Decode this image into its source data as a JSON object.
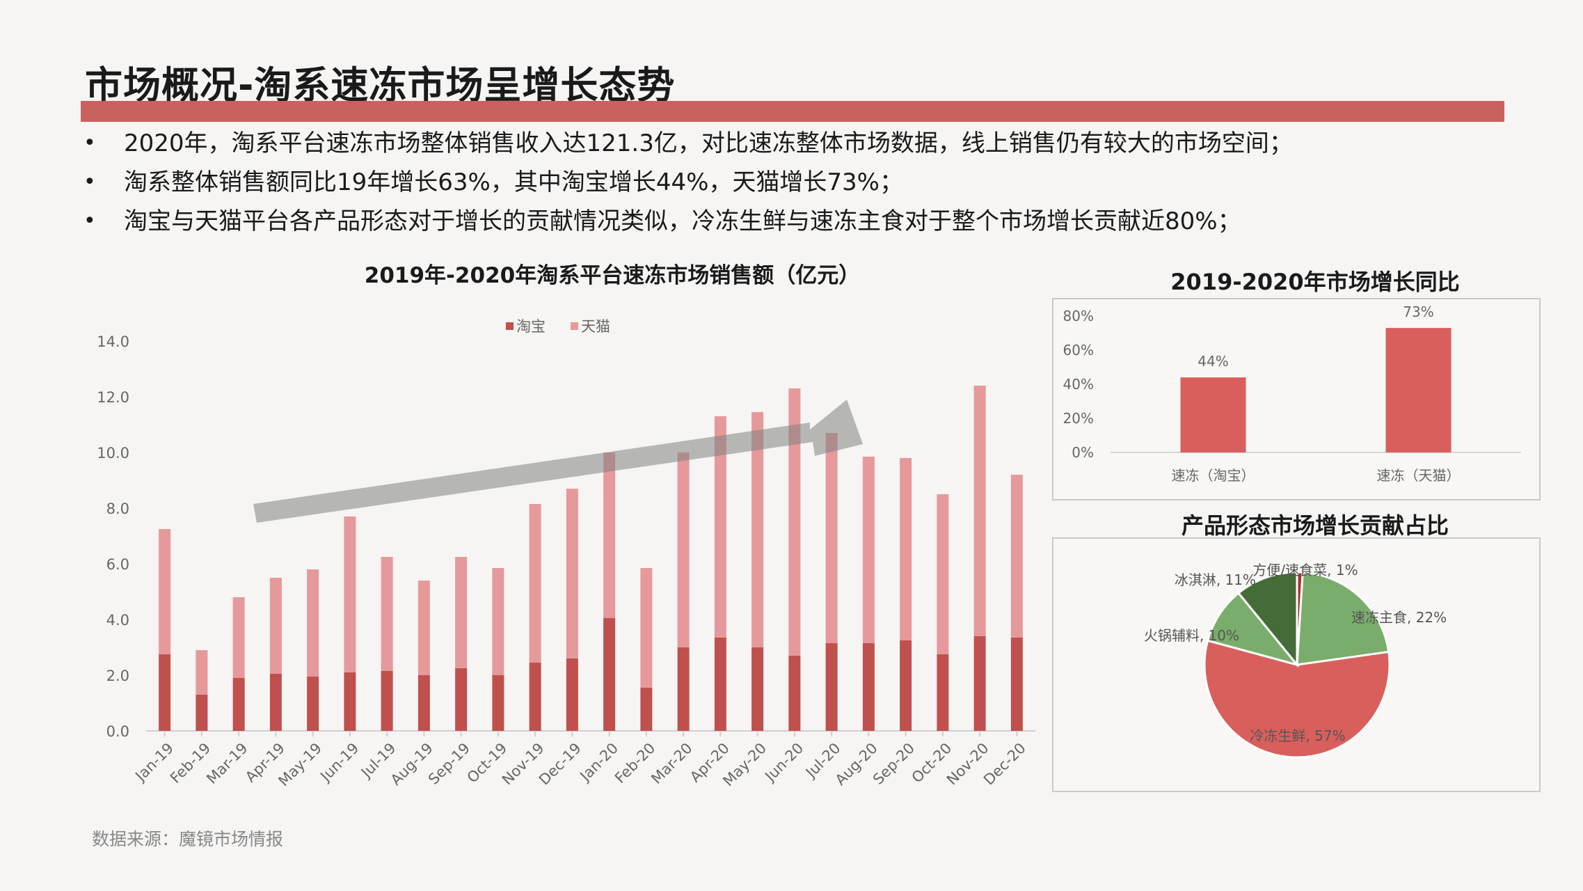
{
  "title": "市场概况-淘系速冻市场呈增长态势",
  "bullets": [
    "2020年，淘系平台速冻市场整体销售收入达121.3亿，对比速冻整体市场数据，线上销售仍有较大的市场空间；",
    "淘系整体销售额同比19年增长63%，其中淘宝增长44%，天猫增长73%；",
    "淘宝与天猫平台各产品形态对于增长的贡献情况类似，冷冻生鲜与速冻主食对于整个市场增长贡献近80%；"
  ],
  "bullet_symbol": "•",
  "source": "数据来源：魔镜市场情报",
  "colors": {
    "accent": "#c9615e",
    "taobao": "#c0504d",
    "tmall": "#e6999a",
    "growth_bar": "#d95f5c",
    "pie_red": "#d95f5c",
    "pie_green": "#7aad6b",
    "pie_dark_green": "#456b39",
    "pie_darkred": "#a83332"
  },
  "chart_data": [
    {
      "type": "bar",
      "stacked": true,
      "title": "2019年-2020年淘系平台速冻市场销售额（亿元）",
      "categories": [
        "Jan-19",
        "Feb-19",
        "Mar-19",
        "Apr-19",
        "May-19",
        "Jun-19",
        "Jul-19",
        "Aug-19",
        "Sep-19",
        "Oct-19",
        "Nov-19",
        "Dec-19",
        "Jan-20",
        "Feb-20",
        "Mar-20",
        "Apr-20",
        "May-20",
        "Jun-20",
        "Jul-20",
        "Aug-20",
        "Sep-20",
        "Oct-20",
        "Nov-20",
        "Dec-20"
      ],
      "series": [
        {
          "name": "淘宝",
          "values": [
            2.75,
            1.3,
            1.9,
            2.05,
            1.95,
            2.1,
            2.15,
            2.0,
            2.25,
            2.0,
            2.45,
            2.6,
            4.05,
            1.55,
            3.0,
            3.35,
            3.0,
            2.7,
            3.15,
            3.15,
            3.25,
            2.75,
            3.4,
            3.35
          ]
        },
        {
          "name": "天猫",
          "values": [
            4.5,
            1.6,
            2.9,
            3.45,
            3.85,
            5.6,
            4.1,
            3.4,
            4.0,
            3.85,
            5.7,
            6.1,
            5.95,
            4.3,
            7.0,
            7.95,
            8.45,
            9.6,
            7.55,
            6.7,
            6.55,
            5.75,
            9.0,
            5.85
          ]
        }
      ],
      "ylim": [
        0,
        14
      ],
      "yticks": [
        "0.0",
        "2.0",
        "4.0",
        "6.0",
        "8.0",
        "10.0",
        "12.0",
        "14.0"
      ],
      "legend": "top-center",
      "annotation": "upward trend arrow"
    },
    {
      "type": "bar",
      "title": "2019-2020年市场增长同比",
      "categories": [
        "速冻（淘宝）",
        "速冻（天猫）"
      ],
      "values": [
        44,
        73
      ],
      "data_labels": [
        "44%",
        "73%"
      ],
      "ylim": [
        0,
        80
      ],
      "yticks": [
        "0%",
        "20%",
        "40%",
        "60%",
        "80%"
      ]
    },
    {
      "type": "pie",
      "title": "产品形态市场增长贡献占比",
      "slices": [
        {
          "label": "方便/速食菜, 1%",
          "value": 1
        },
        {
          "label": "速冻主食, 22%",
          "value": 22
        },
        {
          "label": "冷冻生鲜, 57%",
          "value": 57
        },
        {
          "label": "火锅辅料, 10%",
          "value": 10
        },
        {
          "label": "冰淇淋, 11%",
          "value": 11
        }
      ]
    }
  ]
}
